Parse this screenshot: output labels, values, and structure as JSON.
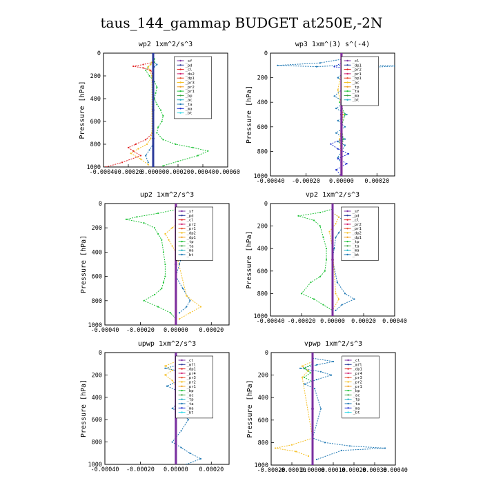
{
  "title": "taus_144_gammap  BUDGET at250E,-2N",
  "chart_data": [
    {
      "type": "line",
      "title": "wp2   1xm^2/s^3",
      "ylabel": "Pressure [hPa]",
      "xlim": [
        -0.0004,
        0.0006
      ],
      "xticks": [
        "-0.00040",
        "-0.00020",
        "0.00000",
        "0.00020",
        "0.00040",
        "0.00060"
      ],
      "ylim": [
        1000,
        0
      ],
      "yticks": [
        "0",
        "200",
        "400",
        "600",
        "800",
        "1000"
      ],
      "legend": [
        "_sf",
        "_pd",
        "_cl",
        "_ds2",
        "_dp1",
        "_pr3",
        "_pr2",
        "_pr1",
        "_bp",
        "_ac",
        "_ta",
        "_ma",
        "_bt"
      ],
      "series": [
        {
          "name": "_pr1",
          "color": "#22c33a",
          "x": [
            1e-05,
            1e-05,
            -2e-05,
            -4e-05,
            -6e-05,
            -3e-05,
            1e-05,
            3e-05,
            2e-05,
            1e-05,
            3e-05,
            6e-05,
            8e-05,
            7e-05,
            4e-05,
            3e-05,
            8e-05,
            0.00018,
            0.00032,
            0.00044,
            0.00036,
            0.0002,
            8e-05
          ],
          "y": [
            50,
            80,
            100,
            120,
            150,
            200,
            250,
            300,
            350,
            400,
            450,
            500,
            550,
            600,
            650,
            700,
            760,
            800,
            830,
            860,
            900,
            950,
            990
          ]
        },
        {
          "name": "_pr2",
          "color": "#f5c026",
          "x": [
            -1e-05,
            -2e-05,
            -4e-05,
            -3e-05,
            -1e-05,
            -1e-05,
            -2e-05,
            -5e-05,
            -0.00012,
            -0.00018,
            -0.0001,
            -4e-05
          ],
          "y": [
            80,
            100,
            120,
            150,
            200,
            700,
            750,
            800,
            840,
            880,
            930,
            980
          ]
        },
        {
          "name": "_cl",
          "color": "#e02020",
          "x": [
            0,
            -8e-05,
            -0.00016,
            -8e-05,
            -2e-05,
            0,
            0,
            -6e-05,
            -0.00014,
            -0.0002,
            -0.00016,
            -0.0001,
            -0.00025,
            -0.00038
          ],
          "y": [
            80,
            100,
            115,
            130,
            150,
            200,
            700,
            760,
            800,
            830,
            860,
            900,
            960,
            1000
          ]
        },
        {
          "name": "_ta",
          "color": "#1f78b4",
          "x": [
            0,
            3e-05,
            1e-05,
            0,
            0,
            -3e-05,
            -6e-05,
            -4e-05
          ],
          "y": [
            80,
            100,
            120,
            150,
            800,
            850,
            900,
            960
          ]
        },
        {
          "name": "_pd",
          "color": "#7b2fa0",
          "x": [
            0,
            0,
            0,
            0,
            0
          ],
          "y": [
            0,
            250,
            500,
            750,
            1000
          ]
        },
        {
          "name": "_bt",
          "color": "#2a3a9a",
          "x": [
            0,
            0,
            0,
            0,
            0
          ],
          "y": [
            0,
            250,
            500,
            750,
            1000
          ]
        }
      ]
    },
    {
      "type": "line",
      "title": "wp3   1xm^(3) s^(-4)",
      "ylabel": "Pressure [hPa]",
      "xlim": [
        -0.0004,
        0.0003
      ],
      "xticks": [
        "-0.00040",
        "-0.00020",
        "0.00000",
        "0.00020"
      ],
      "ylim": [
        1000,
        0
      ],
      "yticks": [
        "0",
        "200",
        "400",
        "600",
        "800",
        "1000"
      ],
      "legend": [
        "_cl",
        "_dp1",
        "_pr2",
        "_pr1",
        "_bp1",
        "_ac",
        "_tp",
        "_ta",
        "_ma",
        "_bt"
      ],
      "series": [
        {
          "name": "_ta",
          "color": "#1f78b4",
          "x": [
            0,
            -0.00012,
            -0.00036,
            -0.00014,
            6e-05,
            0.0003,
            0.00012,
            2e-05,
            -2e-05,
            3e-05,
            0,
            -4e-05,
            2e-05,
            -3e-05,
            3e-05,
            -2e-05,
            2e-05,
            -3e-05,
            2e-05,
            -2e-05,
            2e-05,
            0,
            -2e-05,
            0
          ],
          "y": [
            50,
            80,
            100,
            110,
            95,
            105,
            120,
            150,
            200,
            250,
            300,
            350,
            400,
            450,
            500,
            550,
            600,
            650,
            700,
            720,
            750,
            800,
            850,
            900
          ]
        },
        {
          "name": "_tp",
          "color": "#2030d0",
          "x": [
            0,
            -4e-05,
            4e-05,
            0,
            0,
            -6e-05,
            -2e-05,
            4e-05,
            -2e-05,
            3e-05,
            -3e-05,
            0
          ],
          "y": [
            80,
            110,
            130,
            150,
            700,
            740,
            780,
            820,
            860,
            900,
            950,
            1000
          ]
        },
        {
          "name": "_pr1",
          "color": "#22c33a",
          "x": [
            0,
            1e-05,
            -1e-05,
            2e-05,
            0,
            1e-05,
            0
          ],
          "y": [
            200,
            300,
            400,
            500,
            600,
            700,
            800
          ]
        },
        {
          "name": "_pr2",
          "color": "#f5c026",
          "x": [
            0,
            -2e-05,
            1e-05,
            -1e-05,
            0
          ],
          "y": [
            150,
            300,
            500,
            700,
            900
          ]
        },
        {
          "name": "_cl",
          "color": "#e02020",
          "x": [
            0,
            0,
            0
          ],
          "y": [
            0,
            500,
            1000
          ]
        },
        {
          "name": "_bt",
          "color": "#7b2fa0",
          "x": [
            0,
            0,
            0
          ],
          "y": [
            0,
            500,
            1000
          ]
        }
      ]
    },
    {
      "type": "line",
      "title": "up2   1xm^2/s^3",
      "ylabel": "Pressure [hPa]",
      "xlim": [
        -0.0004,
        0.0003
      ],
      "xticks": [
        "-0.00040",
        "-0.00020",
        "0.00000",
        "0.00020"
      ],
      "ylim": [
        1000,
        0
      ],
      "yticks": [
        "0",
        "200",
        "400",
        "600",
        "800",
        "1000"
      ],
      "legend": [
        "_sf",
        "_pd",
        "_cl",
        "_pr2",
        "_pr1",
        "_dp2",
        "_dp1",
        "_tp",
        "_ta",
        "_ma",
        "_bt"
      ],
      "series": [
        {
          "name": "_dp2",
          "color": "#22c33a",
          "x": [
            0,
            -0.0001,
            -0.00022,
            -0.00028,
            -0.00018,
            -0.00012,
            -0.0001,
            -8e-05,
            -7e-05,
            -6e-05,
            -6e-05,
            -7e-05,
            -8e-05,
            -0.00012,
            -0.00018,
            -0.0001,
            -3e-05,
            0
          ],
          "y": [
            50,
            80,
            110,
            130,
            160,
            200,
            250,
            300,
            400,
            500,
            600,
            650,
            700,
            750,
            800,
            850,
            900,
            950
          ]
        },
        {
          "name": "_ta",
          "color": "#1f78b4",
          "x": [
            0,
            6e-05,
            0.00012,
            9e-05,
            6e-05,
            4e-05,
            2e-05,
            0,
            4e-05,
            8e-05,
            6e-05,
            2e-05
          ],
          "y": [
            80,
            130,
            190,
            260,
            330,
            400,
            500,
            600,
            700,
            800,
            850,
            900
          ]
        },
        {
          "name": "_pr2",
          "color": "#f5c026",
          "x": [
            0,
            2e-05,
            -2e-05,
            -6e-05,
            -4e-05,
            -2e-05,
            0,
            6e-05,
            0.00014,
            8e-05,
            2e-05
          ],
          "y": [
            80,
            150,
            200,
            250,
            300,
            350,
            400,
            760,
            850,
            900,
            950
          ]
        },
        {
          "name": "_sf",
          "color": "#e02020",
          "x": [
            0,
            0,
            0
          ],
          "y": [
            0,
            500,
            1000
          ]
        },
        {
          "name": "_bt",
          "color": "#7b2fa0",
          "x": [
            0,
            0,
            0
          ],
          "y": [
            0,
            500,
            1000
          ]
        }
      ]
    },
    {
      "type": "line",
      "title": "vp2   1xm^2/s^3",
      "ylabel": "Pressure [hPa]",
      "xlim": [
        -0.0004,
        0.0004
      ],
      "xticks": [
        "-0.00040",
        "-0.00020",
        "0.00000",
        "0.00020",
        "0.00040"
      ],
      "ylim": [
        1000,
        0
      ],
      "yticks": [
        "0",
        "200",
        "400",
        "600",
        "800",
        "1000"
      ],
      "legend": [
        "_sf",
        "_pd",
        "_cl",
        "_pr2",
        "_pr1",
        "_dp2",
        "_dp1",
        "_tp",
        "_ta",
        "_ma",
        "_bt"
      ],
      "series": [
        {
          "name": "_dp2",
          "color": "#22c33a",
          "x": [
            0,
            -8e-05,
            -0.00022,
            -0.00012,
            -8e-05,
            -6e-05,
            -4e-05,
            -4e-05,
            -5e-05,
            -8e-05,
            -0.00014,
            -0.0002,
            -0.00012,
            -6e-05,
            0
          ],
          "y": [
            50,
            80,
            110,
            150,
            200,
            300,
            400,
            500,
            600,
            650,
            700,
            800,
            850,
            900,
            950
          ]
        },
        {
          "name": "_ta",
          "color": "#1f78b4",
          "x": [
            0,
            4e-05,
            8e-05,
            6e-05,
            4e-05,
            2e-05,
            1e-05,
            0,
            3e-05,
            8e-05,
            0.00014,
            6e-05,
            2e-05
          ],
          "y": [
            80,
            120,
            160,
            220,
            260,
            300,
            400,
            500,
            700,
            800,
            850,
            900,
            950
          ]
        },
        {
          "name": "_pr2",
          "color": "#f5c026",
          "x": [
            0,
            4e-05,
            2e-05,
            -2e-05,
            0,
            2e-05,
            4e-05,
            0
          ],
          "y": [
            80,
            120,
            180,
            250,
            400,
            800,
            850,
            950
          ]
        },
        {
          "name": "_sf",
          "color": "#e02020",
          "x": [
            0,
            0,
            0
          ],
          "y": [
            0,
            500,
            1000
          ]
        },
        {
          "name": "_bt",
          "color": "#7b2fa0",
          "x": [
            0,
            0,
            0
          ],
          "y": [
            0,
            500,
            1000
          ]
        }
      ]
    },
    {
      "type": "line",
      "title": "upwp   1xm^2/s^3",
      "ylabel": "Pressure [hPa]",
      "xlim": [
        -0.0004,
        0.0003
      ],
      "xticks": [
        "-0.00040",
        "-0.00020",
        "0.00000",
        "0.00020"
      ],
      "ylim": [
        1000,
        0
      ],
      "yticks": [
        "0",
        "200",
        "400",
        "600",
        "800",
        "1000"
      ],
      "legend": [
        "_cl",
        "_mfl",
        "_dp1",
        "_pr4",
        "_pr3",
        "_pr2",
        "_pr1",
        "_bp",
        "_ac",
        "_tp",
        "_ta",
        "_ma",
        "_bt"
      ],
      "series": [
        {
          "name": "_ta",
          "color": "#1f78b4",
          "x": [
            0,
            0.0001,
            2e-05,
            -6e-05,
            3e-05,
            8e-05,
            2e-05,
            -5e-05,
            2e-05,
            5e-05,
            1e-05,
            -2e-05,
            4e-05,
            7e-05,
            3e-05,
            -2e-05,
            3e-05,
            8e-05,
            0.00014,
            6e-05
          ],
          "y": [
            50,
            80,
            110,
            140,
            170,
            200,
            250,
            300,
            350,
            400,
            450,
            500,
            550,
            600,
            700,
            800,
            850,
            900,
            950,
            1000
          ]
        },
        {
          "name": "_pr2",
          "color": "#f5c026",
          "x": [
            0,
            -6e-05,
            -2e-05,
            -6e-05,
            -2e-05,
            0
          ],
          "y": [
            80,
            120,
            160,
            200,
            250,
            300
          ]
        },
        {
          "name": "_mfl",
          "color": "#2a3a9a",
          "x": [
            0,
            0,
            0
          ],
          "y": [
            0,
            500,
            1000
          ]
        },
        {
          "name": "_cl",
          "color": "#7b2fa0",
          "x": [
            0,
            0,
            0
          ],
          "y": [
            0,
            500,
            1000
          ]
        }
      ]
    },
    {
      "type": "line",
      "title": "vpwp   1xm^2/s^3",
      "ylabel": "Pressure [hPa]",
      "xlim": [
        -0.0002,
        0.0004
      ],
      "xticks": [
        "-0.00020",
        "-0.00010",
        "0.00000",
        "0.00010",
        "0.00020",
        "0.00030",
        "0.00040"
      ],
      "ylim": [
        1000,
        0
      ],
      "yticks": [
        "0",
        "200",
        "400",
        "600",
        "800",
        "1000"
      ],
      "legend": [
        "_cl",
        "_mfl",
        "_dp1",
        "_pr4",
        "_pr3",
        "_pr2",
        "_pr1",
        "_bp",
        "_ac",
        "_tp",
        "_ta",
        "_ma",
        "_bt"
      ],
      "series": [
        {
          "name": "_ta",
          "color": "#1f78b4",
          "x": [
            0,
            0.0001,
            2e-05,
            -6e-05,
            4e-05,
            9e-05,
            2e-05,
            -4e-05,
            1e-05,
            4e-05,
            0,
            6e-05,
            0.00018,
            0.00035,
            0.00014,
            2e-05
          ],
          "y": [
            50,
            80,
            110,
            140,
            170,
            200,
            240,
            280,
            320,
            500,
            760,
            800,
            830,
            850,
            870,
            950
          ]
        },
        {
          "name": "_pr2",
          "color": "#f5c026",
          "x": [
            0,
            -5e-05,
            -2e-05,
            -5e-05,
            0,
            -0.0001,
            -0.00018,
            -8e-05,
            -2e-05
          ],
          "y": [
            80,
            120,
            160,
            220,
            760,
            820,
            850,
            880,
            920
          ]
        },
        {
          "name": "_pr1",
          "color": "#22c33a",
          "x": [
            0,
            -4e-05,
            -1e-05,
            -4e-05,
            0
          ],
          "y": [
            100,
            140,
            180,
            220,
            260
          ]
        },
        {
          "name": "_mfl",
          "color": "#2a3a9a",
          "x": [
            0,
            0,
            0
          ],
          "y": [
            0,
            500,
            1000
          ]
        },
        {
          "name": "_cl",
          "color": "#7b2fa0",
          "x": [
            0,
            0,
            0
          ],
          "y": [
            0,
            500,
            1000
          ]
        }
      ]
    }
  ]
}
